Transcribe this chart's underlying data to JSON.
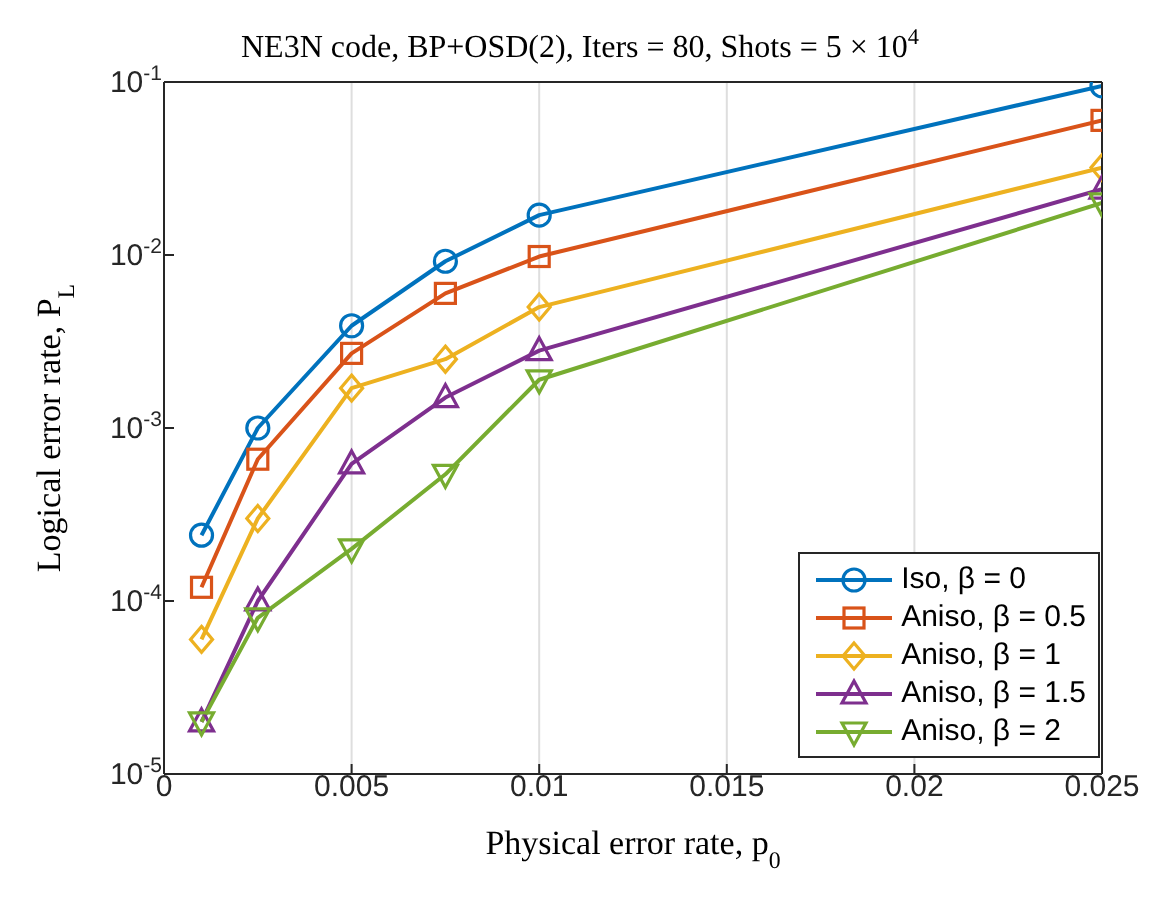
{
  "chart_data": {
    "type": "line",
    "title": "NE3N code, BP+OSD(2), Iters = 80, Shots = 5 × 10$^{4}$",
    "xlabel": "Physical error rate, p$_{0}$",
    "ylabel": "Logical error rate, P$_{L}$",
    "x": [
      0.001,
      0.0025,
      0.005,
      0.0075,
      0.01,
      0.025
    ],
    "series": [
      {
        "name": "Iso, β = 0",
        "color": "#0072bd",
        "marker": "circle",
        "values": [
          0.00024,
          0.001,
          0.0039,
          0.0092,
          0.017,
          0.095
        ]
      },
      {
        "name": "Aniso, β = 0.5",
        "color": "#d95319",
        "marker": "square",
        "values": [
          0.00012,
          0.00066,
          0.0027,
          0.006,
          0.0098,
          0.06
        ]
      },
      {
        "name": "Aniso, β = 1",
        "color": "#edb120",
        "marker": "diamond",
        "values": [
          6e-05,
          0.0003,
          0.0017,
          0.0025,
          0.005,
          0.032
        ]
      },
      {
        "name": "Aniso, β = 1.5",
        "color": "#7e2f8e",
        "marker": "triangle",
        "values": [
          2e-05,
          0.0001,
          0.00062,
          0.0015,
          0.0028,
          0.024
        ]
      },
      {
        "name": "Aniso, β = 2",
        "color": "#77ac30",
        "marker": "triangle-down",
        "values": [
          2e-05,
          8e-05,
          0.0002,
          0.00054,
          0.0019,
          0.02
        ]
      }
    ],
    "xlim": [
      0,
      0.025
    ],
    "xticks": [
      0,
      0.005,
      0.01,
      0.015,
      0.02,
      0.025
    ],
    "ylim": [
      1e-05,
      0.1
    ],
    "yticks": [
      {
        "value": 1e-05,
        "label": "10$^{-5}$"
      },
      {
        "value": 0.0001,
        "label": "10$^{-4}$"
      },
      {
        "value": 0.001,
        "label": "10$^{-3}$"
      },
      {
        "value": 0.01,
        "label": "10$^{-2}$"
      },
      {
        "value": 0.1,
        "label": "10$^{-1}$"
      }
    ],
    "log": "y",
    "grid": true,
    "legend": "bottom right",
    "line_style": "solid"
  }
}
